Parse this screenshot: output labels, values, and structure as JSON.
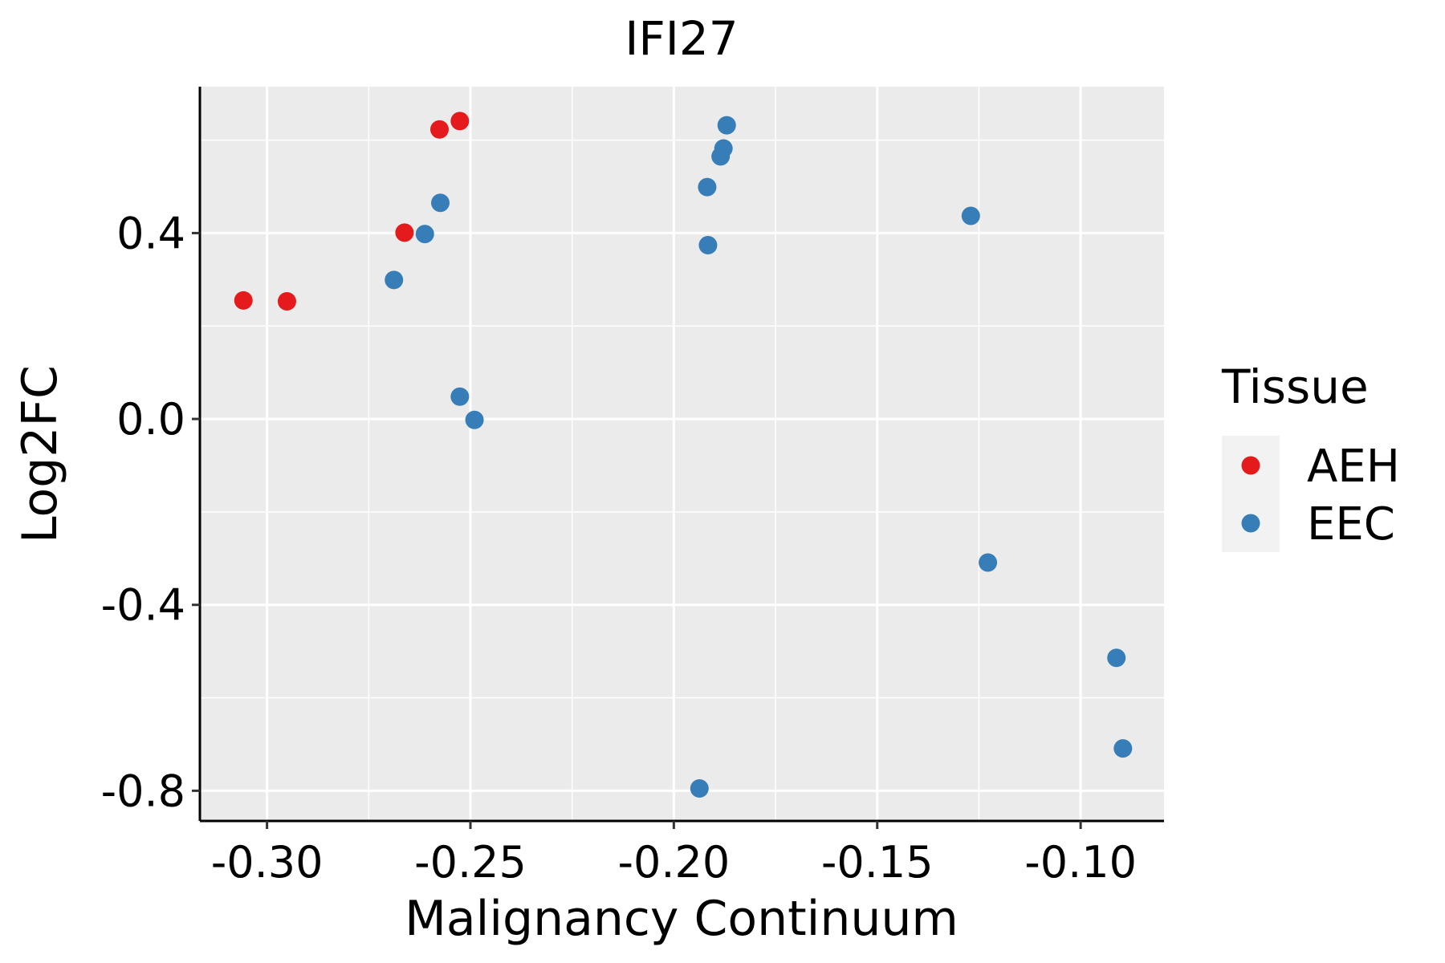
{
  "chart_data": {
    "type": "scatter",
    "title": "IFI27",
    "xlabel": "Malignancy Continuum",
    "ylabel": "Log2FC",
    "xlim": [
      -0.3165,
      -0.0795
    ],
    "ylim": [
      -0.865,
      0.715
    ],
    "x_ticks": [
      -0.3,
      -0.25,
      -0.2,
      -0.15,
      -0.1
    ],
    "x_tick_labels": [
      "-0.30",
      "-0.25",
      "-0.20",
      "-0.15",
      "-0.10"
    ],
    "y_ticks": [
      -0.8,
      -0.4,
      0.0,
      0.4
    ],
    "y_tick_labels": [
      "-0.8",
      "-0.4",
      "0.0",
      "0.4"
    ],
    "grid": true,
    "legend": {
      "title": "Tissue",
      "position": "right",
      "entries": [
        {
          "name": "AEH",
          "color": "#E41A1C"
        },
        {
          "name": "EEC",
          "color": "#377EB8"
        }
      ]
    },
    "series": [
      {
        "name": "AEH",
        "color": "#E41A1C",
        "points": [
          {
            "x": -0.3058,
            "y": 0.255
          },
          {
            "x": -0.2951,
            "y": 0.253
          },
          {
            "x": -0.2662,
            "y": 0.401
          },
          {
            "x": -0.2576,
            "y": 0.623
          },
          {
            "x": -0.2526,
            "y": 0.641
          }
        ]
      },
      {
        "name": "EEC",
        "color": "#377EB8",
        "points": [
          {
            "x": -0.2688,
            "y": 0.299
          },
          {
            "x": -0.2612,
            "y": 0.398
          },
          {
            "x": -0.2574,
            "y": 0.465
          },
          {
            "x": -0.2526,
            "y": 0.048
          },
          {
            "x": -0.249,
            "y": -0.002
          },
          {
            "x": -0.1937,
            "y": -0.795
          },
          {
            "x": -0.1918,
            "y": 0.499
          },
          {
            "x": -0.1916,
            "y": 0.374
          },
          {
            "x": -0.1885,
            "y": 0.565
          },
          {
            "x": -0.1878,
            "y": 0.582
          },
          {
            "x": -0.187,
            "y": 0.632
          },
          {
            "x": -0.127,
            "y": 0.437
          },
          {
            "x": -0.1228,
            "y": -0.309
          },
          {
            "x": -0.0912,
            "y": -0.514
          },
          {
            "x": -0.0896,
            "y": -0.709
          }
        ]
      }
    ]
  }
}
